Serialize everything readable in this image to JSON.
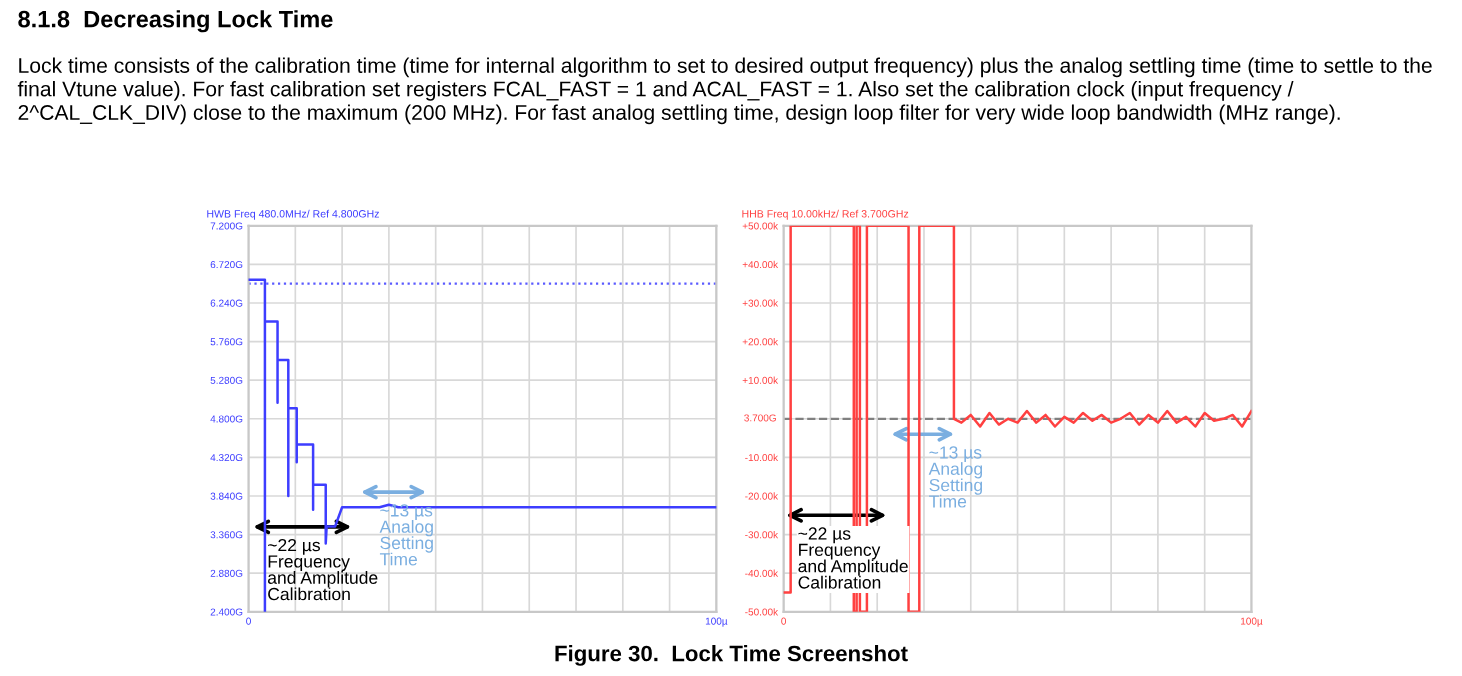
{
  "chart_data": [
    {
      "type": "other",
      "title": "8.1.8  Decreasing Lock Time",
      "subtitle": "Lock time consists of the calibration time (time for internal algorithm to set to desired output frequency) plus the analog settling time (time to settle to the final Vtune value). For fast calibration set registers FCAL_FAST = 1 and ACAL_FAST = 1. Also set the calibration clock (input frequency / 2^CAL_CLK_DIV) close to the maximum (200 MHz). For fast analog settling time, design loop filter for very wide loop bandwidth (MHz range).",
      "annotations": [
        "Figure 30.  Lock Time Screenshot"
      ]
    },
    {
      "type": "line",
      "title": "HWB Freq 480.0MHz/ Ref 4.800GHz",
      "series": [
        {
          "color": "#3d3dff",
          "x": [
            0,
            3.5,
            3.5,
            3.5,
            3.9,
            6.2,
            6.2,
            6.2,
            8.5,
            8.5,
            8.5,
            10.3,
            10.3,
            10.3,
            13.8,
            13.8,
            13.8,
            16.5,
            16.5,
            16.7,
            18.5,
            20,
            28,
            30,
            32,
            100
          ],
          "values": [
            6.53,
            6.53,
            2.4,
            6.01,
            6.01,
            6.01,
            5.0,
            5.53,
            5.53,
            3.84,
            4.93,
            4.93,
            4.26,
            4.48,
            4.48,
            3.67,
            3.98,
            3.98,
            3.25,
            3.46,
            3.46,
            3.7,
            3.7,
            3.73,
            3.7,
            3.7
          ]
        }
      ],
      "xlim": [
        0,
        100
      ],
      "ylim": [
        2.4,
        7.2
      ],
      "xticks": [
        0,
        {
          "value": 10,
          "label": null
        },
        {
          "value": 20,
          "label": null
        },
        {
          "value": 30,
          "label": null
        },
        {
          "value": 40,
          "label": null
        },
        {
          "value": 50,
          "label": null
        },
        {
          "value": 60,
          "label": null
        },
        {
          "value": 70,
          "label": null
        },
        {
          "value": 80,
          "label": null
        },
        {
          "value": 90,
          "label": null
        },
        {
          "value": 100,
          "label": "100µ"
        }
      ],
      "yticks": [
        {
          "value": 2.4,
          "label": "2.400G"
        },
        {
          "value": 2.88,
          "label": "2.880G"
        },
        {
          "value": 3.36,
          "label": "3.360G"
        },
        {
          "value": 3.84,
          "label": "3.840G"
        },
        {
          "value": 4.32,
          "label": "4.320G"
        },
        {
          "value": 4.8,
          "label": "4.800G"
        },
        {
          "value": 5.28,
          "label": "5.280G"
        },
        {
          "value": 5.76,
          "label": "5.760G"
        },
        {
          "value": 6.24,
          "label": "6.240G"
        },
        {
          "value": 6.72,
          "label": "6.720G"
        },
        {
          "value": 7.2,
          "label": "7.200G"
        }
      ],
      "grid": true,
      "ref_lines": [
        {
          "axis": "y",
          "value": 6.48,
          "color": "#5a5aff",
          "line_style": "dotted"
        }
      ],
      "annotations": [
        "~22 µs\nFrequency\nand Amplitude\nCalibration",
        "~13 µs\nAnalog\nSetting\nTime"
      ]
    },
    {
      "type": "line",
      "title": "HHB Freq 10.00kHz/ Ref 3.700GHz",
      "series": [
        {
          "color": "#ff4040",
          "x": [
            0,
            1.5,
            1.5,
            15,
            15,
            15.6,
            15.6,
            16.3,
            16.3,
            17.8,
            17.8,
            18.4,
            18.4,
            26.7,
            26.7,
            29,
            29,
            36.4,
            36.4,
            38,
            40,
            42,
            44,
            46,
            48,
            50,
            52,
            54,
            56,
            58,
            60,
            62,
            64,
            66,
            68,
            70,
            72,
            74,
            76,
            78,
            80,
            82,
            84,
            86,
            88,
            90,
            92,
            94,
            96,
            98,
            100
          ],
          "values": [
            -45,
            -45,
            50,
            50,
            -50,
            -50,
            50,
            50,
            -50,
            -50,
            50,
            50,
            50,
            50,
            -50,
            -50,
            50,
            50,
            0,
            -1,
            1,
            -2,
            1.5,
            -1.5,
            0,
            -1,
            2,
            -1,
            1,
            -2,
            0.5,
            -1,
            1.5,
            -0.5,
            1,
            -1,
            0,
            1.5,
            -1.5,
            1,
            -1,
            2,
            -1,
            0.5,
            -2,
            1.5,
            -0.5,
            0,
            1,
            -2,
            2
          ]
        }
      ],
      "xlim": [
        0,
        100
      ],
      "ylim": [
        -50,
        50
      ],
      "xticks": [
        0,
        {
          "value": 10,
          "label": null
        },
        {
          "value": 20,
          "label": null
        },
        {
          "value": 30,
          "label": null
        },
        {
          "value": 40,
          "label": null
        },
        {
          "value": 50,
          "label": null
        },
        {
          "value": 60,
          "label": null
        },
        {
          "value": 70,
          "label": null
        },
        {
          "value": 80,
          "label": null
        },
        {
          "value": 90,
          "label": null
        },
        {
          "value": 100,
          "label": "100µ"
        }
      ],
      "yticks": [
        {
          "value": -50,
          "label": "-50.00k"
        },
        {
          "value": -40,
          "label": "-40.00k"
        },
        {
          "value": -30,
          "label": "-30.00k"
        },
        {
          "value": -20,
          "label": "-20.00k"
        },
        {
          "value": -10,
          "label": "-10.00k"
        },
        {
          "value": 0,
          "label": null
        },
        {
          "value": 10,
          "label": "+10.00k"
        },
        {
          "value": 20,
          "label": "+20.00k"
        },
        {
          "value": 30,
          "label": "+30.00k"
        },
        {
          "value": 40,
          "label": "+40.00k"
        },
        {
          "value": 50,
          "label": "+50.00k"
        }
      ],
      "grid": true,
      "ref_lines": [
        {
          "axis": "y",
          "value": 0,
          "color": "#808080",
          "line_style": "dashed",
          "label": "3.700G"
        }
      ],
      "annotations": [
        "~22 µs\nFrequency\nand Amplitude\nCalibration",
        "~13 µs\nAnalog\nSetting\nTime"
      ]
    }
  ]
}
